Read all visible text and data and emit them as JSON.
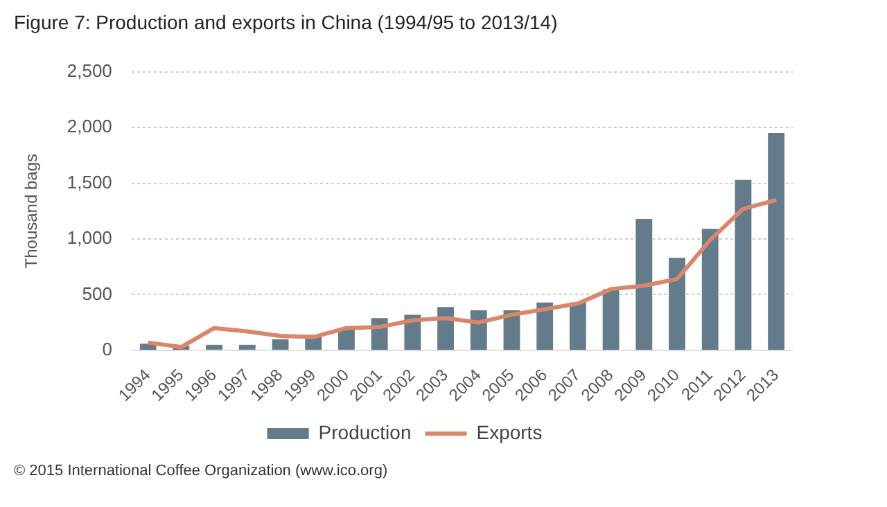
{
  "chart_data": {
    "type": "bar",
    "title": "Figure 7: Production and exports in China (1994/95 to 2013/14)",
    "ylabel": "Thousand bags",
    "categories": [
      "1994",
      "1995",
      "1996",
      "1997",
      "1998",
      "1999",
      "2000",
      "2001",
      "2002",
      "2003",
      "2004",
      "2005",
      "2006",
      "2007",
      "2008",
      "2009",
      "2010",
      "2011",
      "2012",
      "2013"
    ],
    "series": [
      {
        "name": "Production",
        "color": "#637b8a",
        "values": [
          60,
          40,
          50,
          50,
          100,
          140,
          200,
          290,
          320,
          390,
          360,
          360,
          430,
          430,
          550,
          1180,
          830,
          1090,
          1530,
          1950
        ]
      },
      {
        "name": "Exports",
        "type": "line",
        "color": "#d9876b",
        "values": [
          70,
          30,
          200,
          170,
          130,
          120,
          200,
          210,
          270,
          290,
          250,
          320,
          370,
          420,
          550,
          580,
          640,
          990,
          1270,
          1350
        ]
      }
    ],
    "ylim": [
      0,
      2500
    ],
    "yticks": [
      0,
      500,
      {
        "value": 1000,
        "label": "1,000"
      },
      {
        "value": 1500,
        "label": "1,500"
      },
      {
        "value": 2000,
        "label": "2,000"
      },
      {
        "value": 2500,
        "label": "2,500"
      }
    ],
    "grid": "y",
    "legend": "bottom",
    "marker": "none",
    "annotations": [
      "© 2015 International Coffee Organization (www.ico.org)"
    ]
  }
}
